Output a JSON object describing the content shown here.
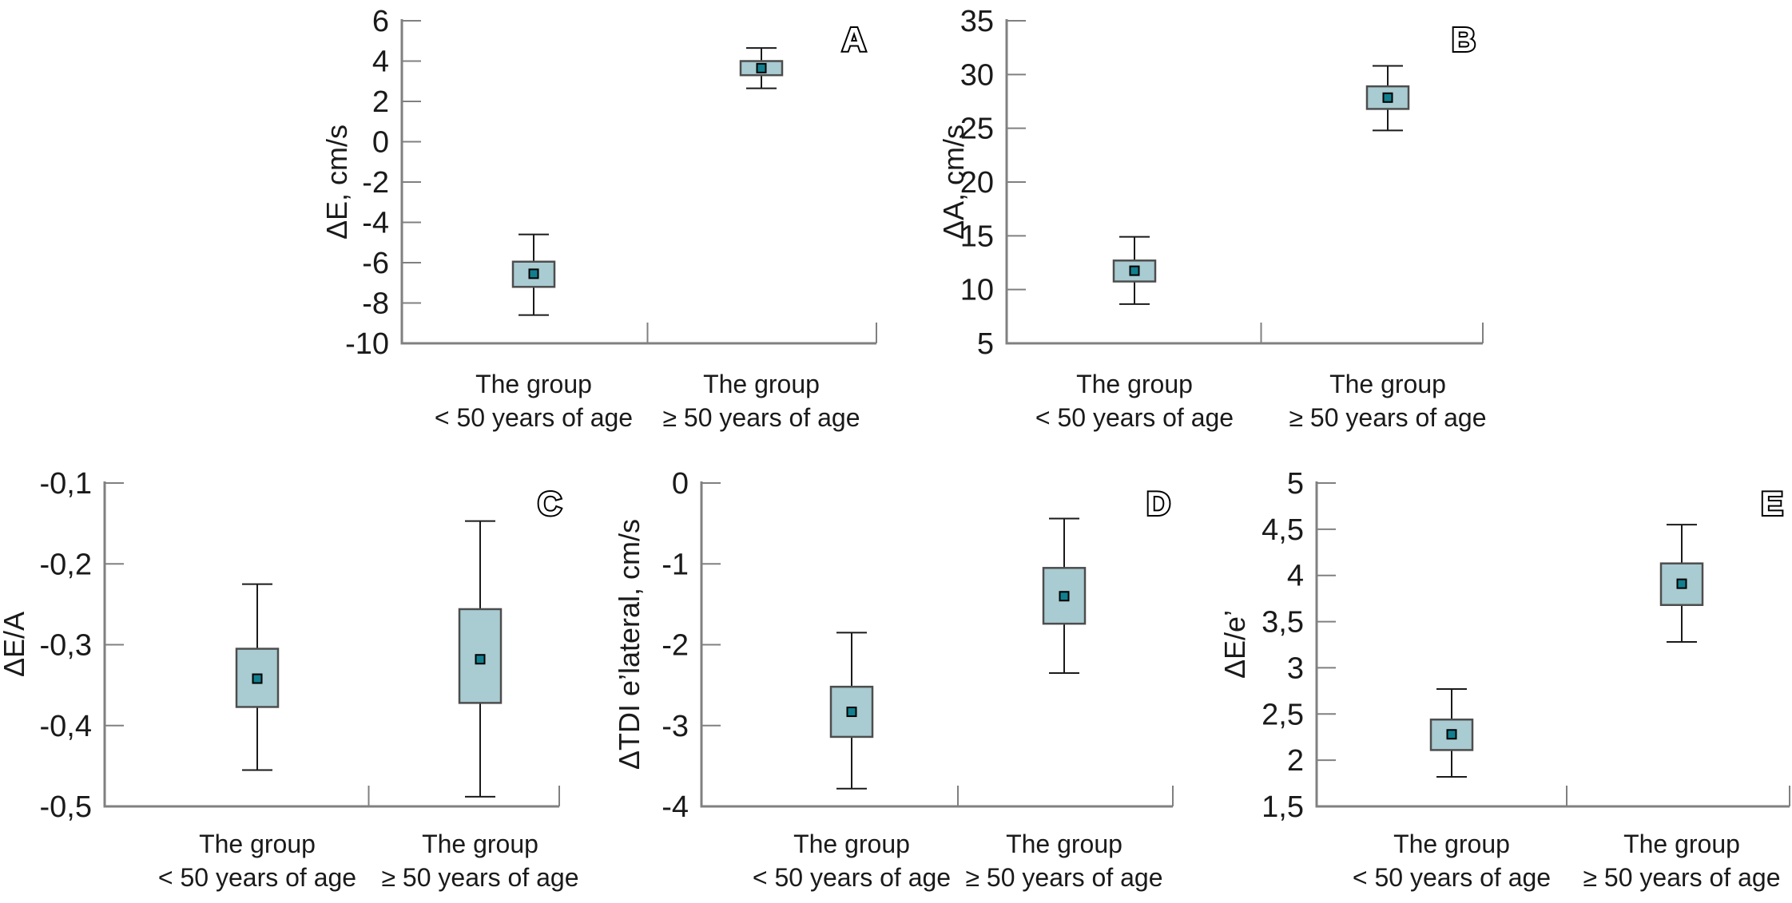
{
  "styles": {
    "background": "#ffffff",
    "box_fill": "#a9cbd2",
    "box_border": "#4d4d4d",
    "mean_fill": "#127f8e",
    "mean_border": "#000000",
    "whisker_color": "#1a1a1a",
    "axis_color": "#808080",
    "text_color": "#1a1a1a",
    "panel_letter_fill": "#ffffff",
    "panel_letter_stroke": "#000000"
  },
  "chart_data": [
    {
      "type": "box",
      "panel_label": "A",
      "ylabel": "ΔE, cm/s",
      "ylim": [
        -10,
        6
      ],
      "grid": false,
      "legend": "none",
      "yticks": [
        {
          "value": 6,
          "label": "6"
        },
        {
          "value": 4,
          "label": "4"
        },
        {
          "value": 2,
          "label": "2"
        },
        {
          "value": 0,
          "label": "0"
        },
        {
          "value": -2,
          "label": "-2"
        },
        {
          "value": -4,
          "label": "-4"
        },
        {
          "value": -6,
          "label": "-6"
        },
        {
          "value": -8,
          "label": "-8"
        },
        {
          "value": -10,
          "label": "-10"
        }
      ],
      "categories": [
        {
          "line1": "The group",
          "line2": "< 50 years of age"
        },
        {
          "line1": "The group",
          "line2": "≥ 50 years of age"
        }
      ],
      "boxes": [
        {
          "whisker_low": -8.6,
          "q1": -7.2,
          "mean": -6.55,
          "q3": -5.95,
          "whisker_high": -4.6
        },
        {
          "whisker_low": 2.65,
          "q1": 3.3,
          "mean": 3.65,
          "q3": 4.0,
          "whisker_high": 4.65
        }
      ]
    },
    {
      "type": "box",
      "panel_label": "B",
      "ylabel": "ΔA, cm/s",
      "ylim": [
        5,
        35
      ],
      "grid": false,
      "legend": "none",
      "yticks": [
        {
          "value": 35,
          "label": "35"
        },
        {
          "value": 30,
          "label": "30"
        },
        {
          "value": 25,
          "label": "25"
        },
        {
          "value": 20,
          "label": "20"
        },
        {
          "value": 15,
          "label": "15"
        },
        {
          "value": 10,
          "label": "10"
        },
        {
          "value": 5,
          "label": "5"
        }
      ],
      "categories": [
        {
          "line1": "The group",
          "line2": "< 50 years of age"
        },
        {
          "line1": "The group",
          "line2": "≥ 50 years of age"
        }
      ],
      "boxes": [
        {
          "whisker_low": 8.65,
          "q1": 10.75,
          "mean": 11.75,
          "q3": 12.7,
          "whisker_high": 14.9
        },
        {
          "whisker_low": 24.8,
          "q1": 26.8,
          "mean": 27.85,
          "q3": 28.9,
          "whisker_high": 30.8
        }
      ]
    },
    {
      "type": "box",
      "panel_label": "C",
      "ylabel": "ΔE/A",
      "ylim": [
        -0.5,
        -0.1
      ],
      "grid": false,
      "legend": "none",
      "yticks": [
        {
          "value": -0.1,
          "label": "-0,1"
        },
        {
          "value": -0.2,
          "label": "-0,2"
        },
        {
          "value": -0.3,
          "label": "-0,3"
        },
        {
          "value": -0.4,
          "label": "-0,4"
        },
        {
          "value": -0.5,
          "label": "-0,5"
        }
      ],
      "categories": [
        {
          "line1": "The group",
          "line2": "< 50 years of age"
        },
        {
          "line1": "The group",
          "line2": "≥ 50 years of age"
        }
      ],
      "boxes": [
        {
          "whisker_low": -0.455,
          "q1": -0.377,
          "mean": -0.342,
          "q3": -0.305,
          "whisker_high": -0.225
        },
        {
          "whisker_low": -0.488,
          "q1": -0.372,
          "mean": -0.318,
          "q3": -0.256,
          "whisker_high": -0.147
        }
      ]
    },
    {
      "type": "box",
      "panel_label": "D",
      "ylabel": "ΔTDI e’lateral, cm/s",
      "ylim": [
        -4,
        0
      ],
      "grid": false,
      "legend": "none",
      "yticks": [
        {
          "value": 0,
          "label": "0"
        },
        {
          "value": -1,
          "label": "-1"
        },
        {
          "value": -2,
          "label": "-2"
        },
        {
          "value": -3,
          "label": "-3"
        },
        {
          "value": -4,
          "label": "-4"
        }
      ],
      "categories": [
        {
          "line1": "The group",
          "line2": "< 50 years of age"
        },
        {
          "line1": "The group",
          "line2": "≥ 50 years of age"
        }
      ],
      "boxes": [
        {
          "whisker_low": -3.78,
          "q1": -3.14,
          "mean": -2.83,
          "q3": -2.52,
          "whisker_high": -1.85
        },
        {
          "whisker_low": -2.35,
          "q1": -1.74,
          "mean": -1.4,
          "q3": -1.05,
          "whisker_high": -0.44
        }
      ]
    },
    {
      "type": "box",
      "panel_label": "E",
      "ylabel": "ΔE/e’",
      "ylim": [
        1.5,
        5
      ],
      "grid": false,
      "legend": "none",
      "yticks": [
        {
          "value": 5,
          "label": "5"
        },
        {
          "value": 4.5,
          "label": "4,5"
        },
        {
          "value": 4,
          "label": "4"
        },
        {
          "value": 3.5,
          "label": "3,5"
        },
        {
          "value": 3,
          "label": "3"
        },
        {
          "value": 2.5,
          "label": "2,5"
        },
        {
          "value": 2,
          "label": "2"
        },
        {
          "value": 1.5,
          "label": "1,5"
        }
      ],
      "categories": [
        {
          "line1": "The group",
          "line2": "< 50 years of age"
        },
        {
          "line1": "The group",
          "line2": "≥ 50 years of age"
        }
      ],
      "boxes": [
        {
          "whisker_low": 1.82,
          "q1": 2.11,
          "mean": 2.28,
          "q3": 2.44,
          "whisker_high": 2.77
        },
        {
          "whisker_low": 3.28,
          "q1": 3.68,
          "mean": 3.91,
          "q3": 4.13,
          "whisker_high": 4.55
        }
      ]
    }
  ]
}
